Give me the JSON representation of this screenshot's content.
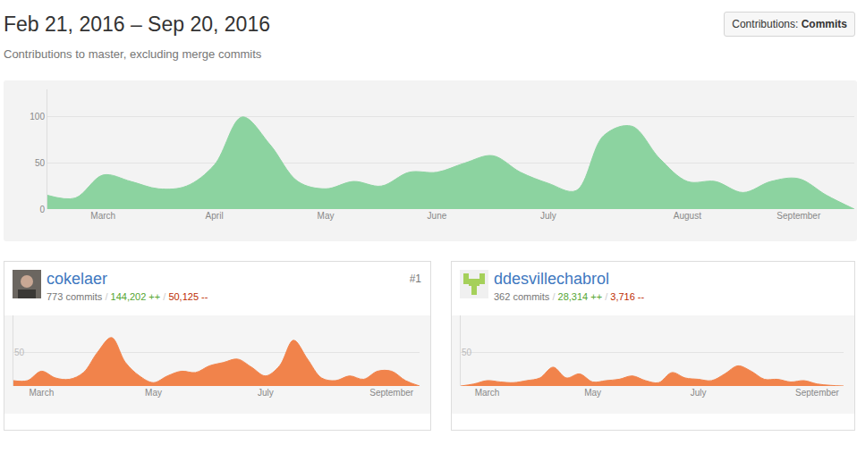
{
  "header": {
    "title": "Feb 21, 2016 – Sep 20, 2016",
    "subtitle": "Contributions to master, excluding merge commits",
    "button": {
      "label": "Contributions:",
      "value": "Commits"
    }
  },
  "stat_separator": "/",
  "chart_data": {
    "type": "area",
    "color": "#8cd3a0",
    "categories": [
      null,
      null,
      "March",
      null,
      null,
      null,
      "April",
      null,
      null,
      null,
      "May",
      null,
      null,
      null,
      "June",
      null,
      null,
      null,
      "July",
      null,
      null,
      null,
      null,
      "August",
      null,
      null,
      null,
      "September",
      null,
      null
    ],
    "values": [
      15,
      12,
      37,
      30,
      22,
      25,
      48,
      100,
      70,
      30,
      22,
      30,
      25,
      40,
      40,
      50,
      58,
      40,
      28,
      20,
      80,
      90,
      55,
      30,
      30,
      18,
      30,
      33,
      15,
      0
    ],
    "ylim": [
      0,
      130
    ],
    "yticks": [
      0,
      50,
      100
    ],
    "grid": true
  },
  "contributors": [
    {
      "name": "cokelaer",
      "rank": "#1",
      "commits": "773 commits",
      "additions": "144,202 ++",
      "deletions": "50,125 --",
      "chart_data": {
        "type": "area",
        "color": "#f1834b",
        "categories": [
          null,
          null,
          "March",
          null,
          null,
          null,
          null,
          null,
          null,
          null,
          "May",
          null,
          null,
          null,
          null,
          null,
          null,
          null,
          "July",
          null,
          null,
          null,
          null,
          null,
          null,
          null,
          null,
          "September",
          null,
          null
        ],
        "values": [
          8,
          8,
          22,
          12,
          10,
          20,
          50,
          72,
          35,
          15,
          5,
          15,
          22,
          20,
          30,
          35,
          40,
          28,
          15,
          30,
          68,
          40,
          12,
          8,
          15,
          10,
          22,
          22,
          8,
          0
        ],
        "ylim": [
          0,
          105
        ],
        "yticks": [
          50
        ],
        "grid": true
      }
    },
    {
      "name": "ddesvillechabrol",
      "commits": "362 commits",
      "additions": "28,314 ++",
      "deletions": "3,716 --",
      "chart_data": {
        "type": "area",
        "color": "#f1834b",
        "categories": [
          null,
          null,
          "March",
          null,
          null,
          null,
          null,
          null,
          null,
          null,
          "May",
          null,
          null,
          null,
          null,
          null,
          null,
          null,
          "July",
          null,
          null,
          null,
          null,
          null,
          null,
          null,
          null,
          "September",
          null,
          null
        ],
        "values": [
          0,
          3,
          8,
          6,
          5,
          8,
          12,
          28,
          12,
          18,
          6,
          8,
          10,
          15,
          8,
          5,
          20,
          12,
          10,
          8,
          18,
          30,
          22,
          10,
          10,
          6,
          8,
          3,
          1,
          0
        ],
        "ylim": [
          0,
          105
        ],
        "yticks": [
          50
        ],
        "grid": true
      }
    }
  ]
}
